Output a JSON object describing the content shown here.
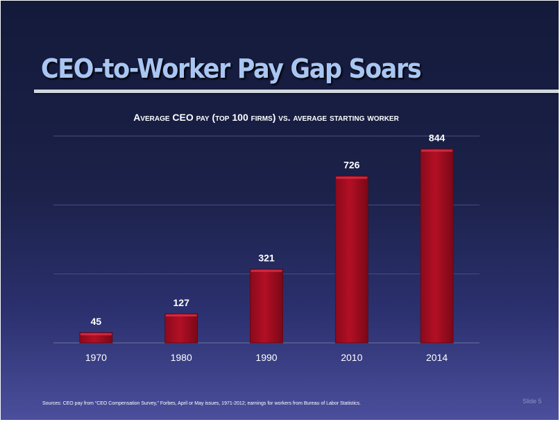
{
  "slide": {
    "title": "CEO-to-Worker Pay Gap Soars",
    "footer": "Sources: CEO pay from “CEO Compensation Survey,” Forbes, April or May issues, 1971-2012;  earnings for workers from Bureau of Labor Statistics.",
    "slide_number": "Slide 5"
  },
  "chart_data": {
    "type": "bar",
    "title": "Average CEO pay (top 100 firms) vs. average starting worker",
    "categories": [
      "1970",
      "1980",
      "1990",
      "2010",
      "2014"
    ],
    "values": [
      45,
      127,
      321,
      726,
      844
    ],
    "ylim": [
      0,
      900
    ],
    "gridlines": [
      0,
      300,
      600,
      900
    ],
    "grid": true,
    "legend": "none",
    "bar_color": "#b30f24",
    "data_labels": true
  }
}
